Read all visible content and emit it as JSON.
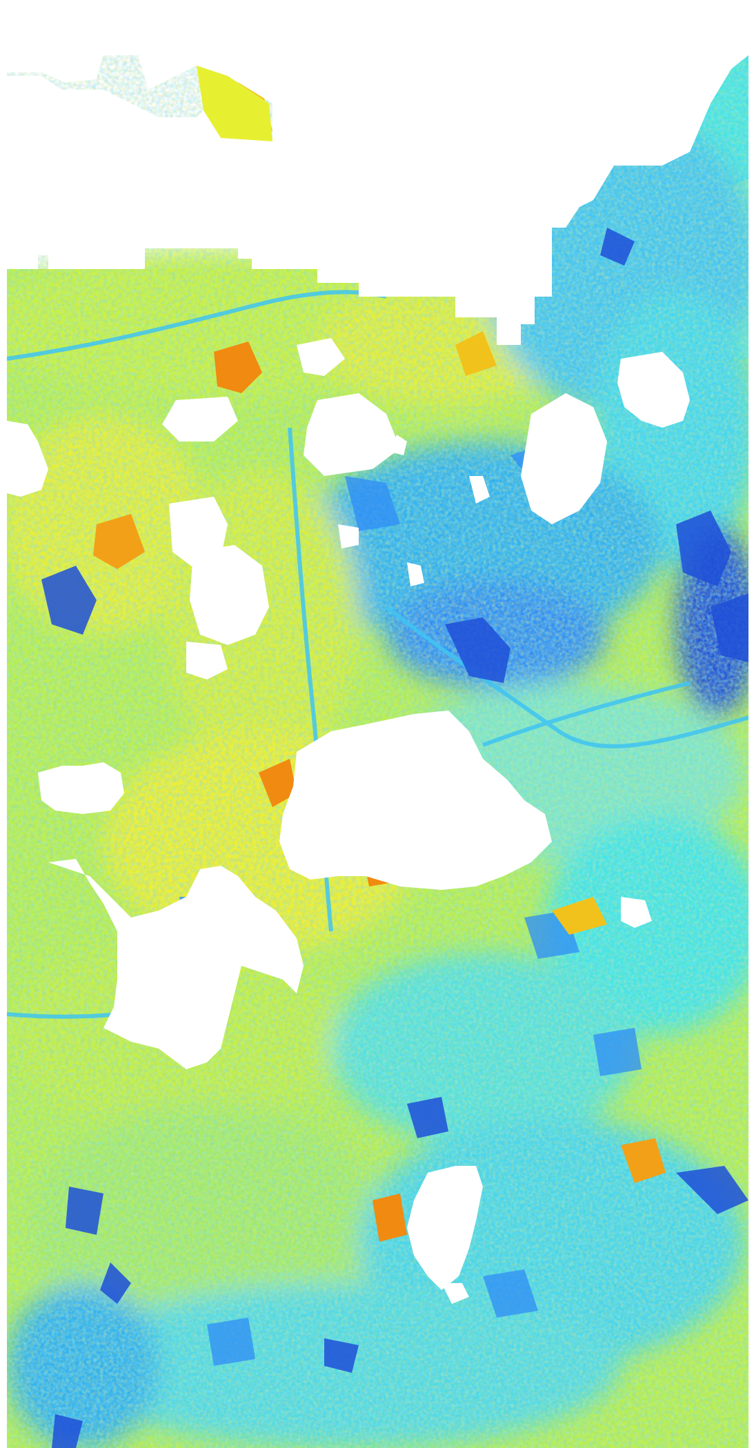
{
  "map": {
    "kind": "false-color-raster",
    "colormap": "jet",
    "no_data_color": "#ffffff",
    "palette": {
      "dark_blue": "#1e4fd8",
      "blue": "#2f8cf5",
      "light_blue": "#3fc4f2",
      "cyan": "#41e6e6",
      "aqua_green": "#6ff0c0",
      "green_yellow": "#b8f04a",
      "yellow": "#f4f42a",
      "gold": "#f2c21c",
      "orange": "#f08a10"
    },
    "regions": [
      {
        "label": "urban-core",
        "tone": "blue"
      },
      {
        "label": "river-corridor",
        "tone": "light_blue"
      },
      {
        "label": "suburban-fields",
        "tone": "yellow"
      },
      {
        "label": "hotspots",
        "tone": "orange"
      },
      {
        "label": "cloud-masked-gaps",
        "tone": "no_data_color"
      }
    ]
  }
}
